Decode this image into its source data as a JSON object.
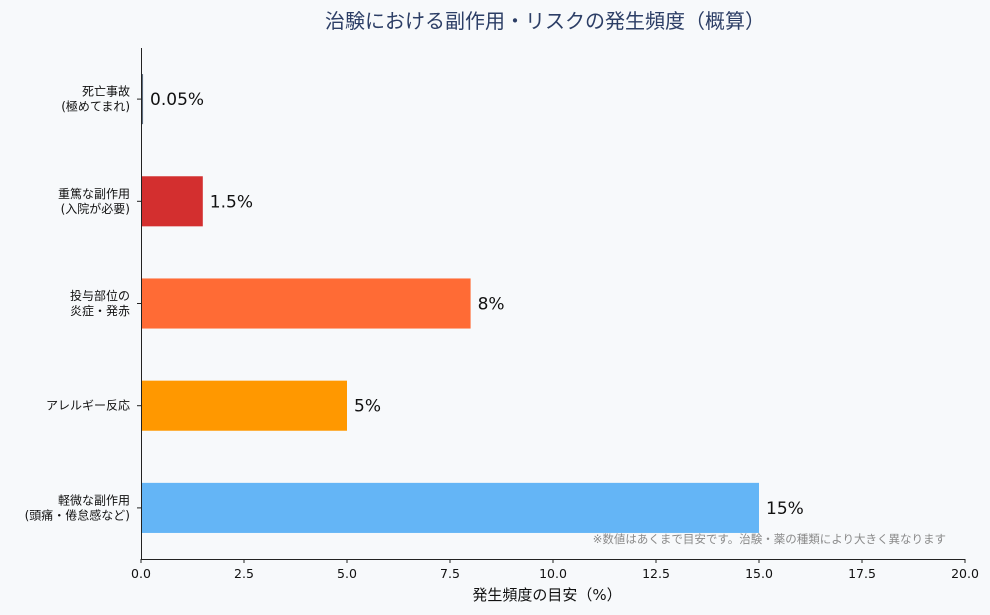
{
  "chart_data": {
    "type": "bar",
    "orientation": "horizontal",
    "title": "治験における副作用・リスクの発生頻度（概算）",
    "xlabel": "発生頻度の目安（%）",
    "ylabel": "",
    "xlim": [
      0,
      20
    ],
    "x_ticks": [
      "0.0",
      "2.5",
      "5.0",
      "7.5",
      "10.0",
      "12.5",
      "15.0",
      "17.5",
      "20.0"
    ],
    "categories": [
      {
        "lines": [
          "死亡事故",
          "(極めてまれ)"
        ]
      },
      {
        "lines": [
          "重篤な副作用",
          "(入院が必要)"
        ]
      },
      {
        "lines": [
          "投与部位の",
          "炎症・発赤"
        ]
      },
      {
        "lines": [
          "アレルギー反応"
        ]
      },
      {
        "lines": [
          "軽微な副作用",
          "(頭痛・倦怠感など)"
        ]
      }
    ],
    "values": [
      0.05,
      1.5,
      8,
      5,
      15
    ],
    "value_labels": [
      "0.05%",
      "1.5%",
      "8%",
      "5%",
      "15%"
    ],
    "colors": [
      "#5d6d7e",
      "#d32f2f",
      "#ff6b35",
      "#ff9800",
      "#64b5f6"
    ],
    "note": "※数値はあくまで目安です。治験・薬の種類により大きく異なります",
    "grid": false,
    "legend": "none"
  }
}
